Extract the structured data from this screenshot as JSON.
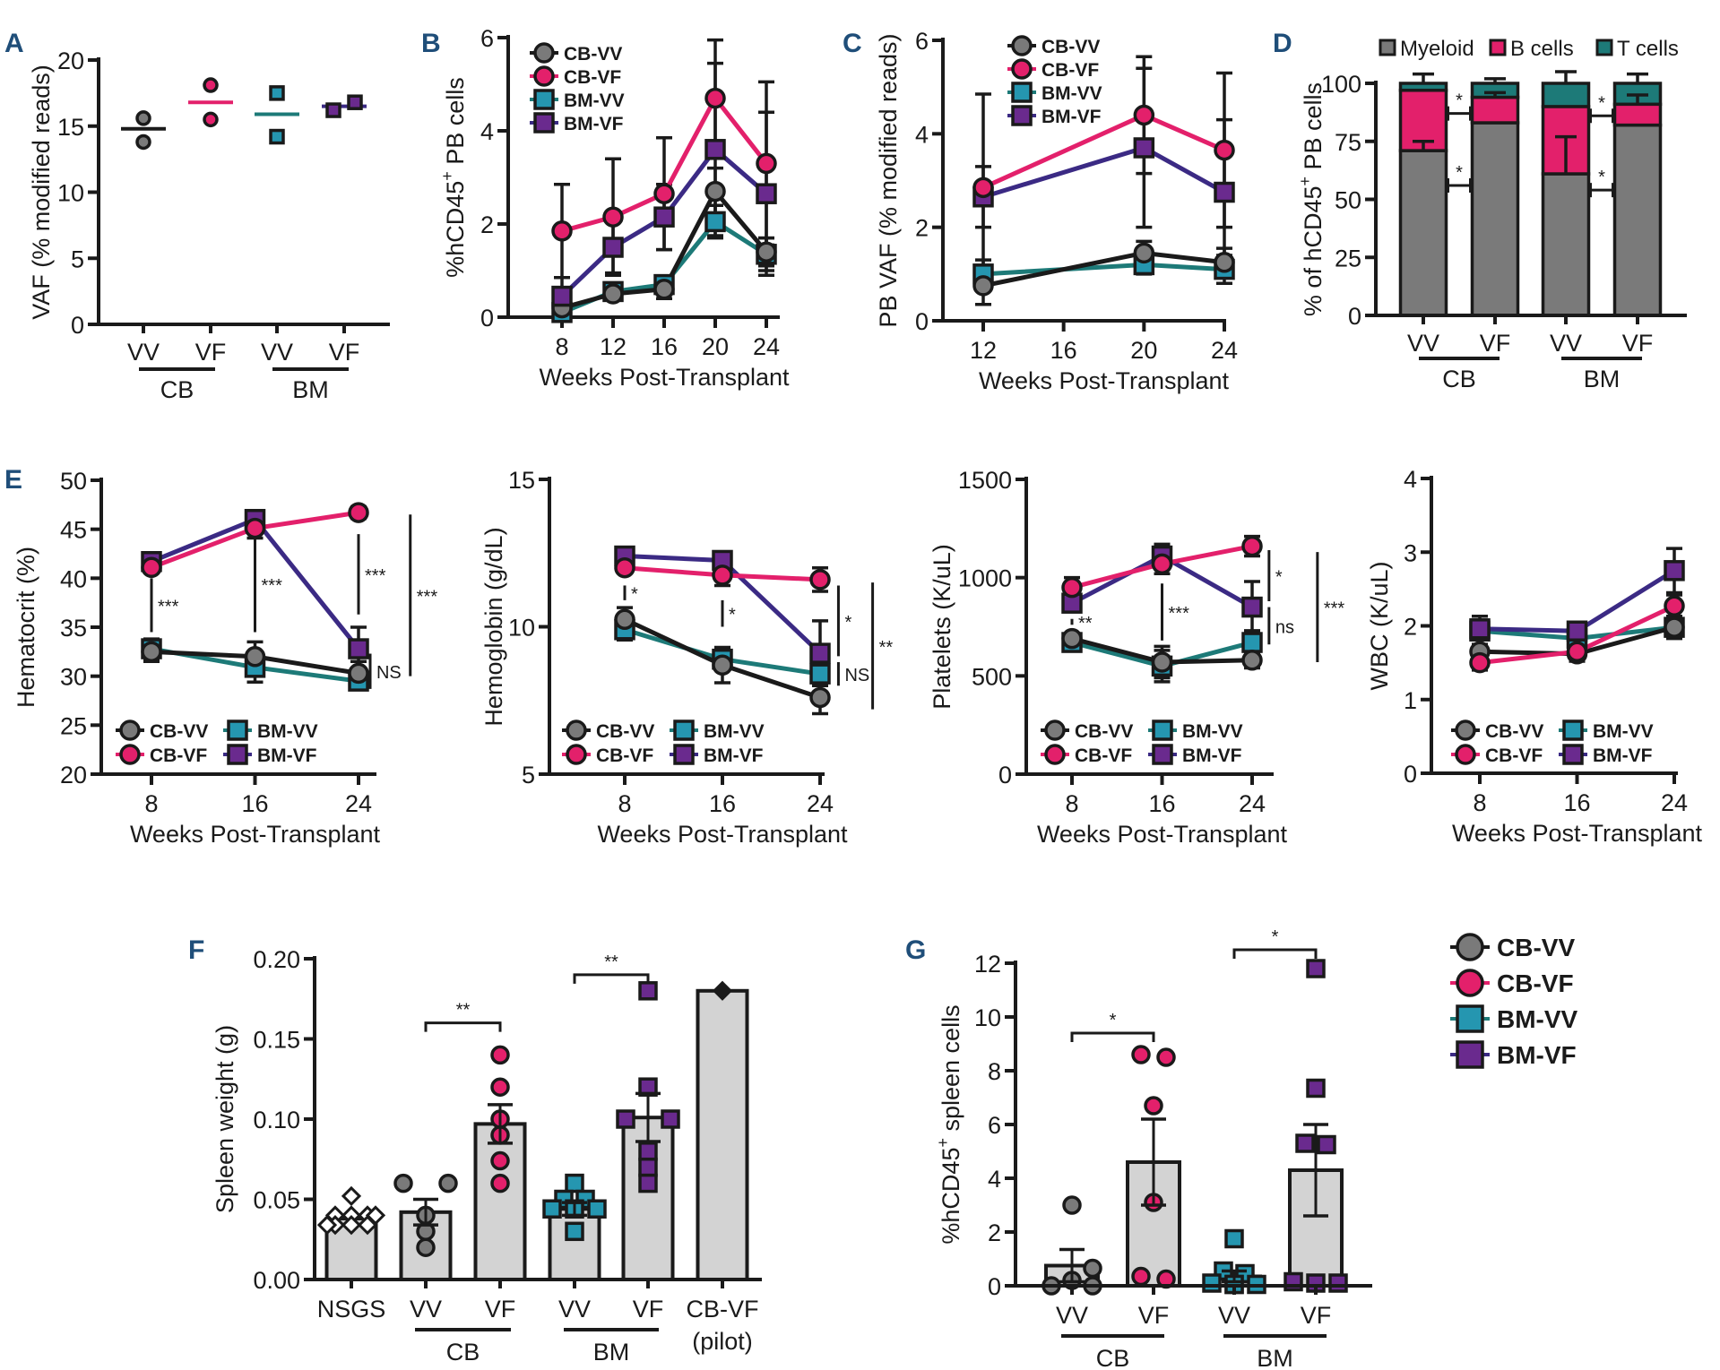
{
  "figure": {
    "series_styles": {
      "CB-VV": {
        "color": "#7a7a7a",
        "line": "#1a1a1a",
        "marker": "circle"
      },
      "CB-VF": {
        "color": "#e3206b",
        "line": "#e3206b",
        "marker": "circle"
      },
      "BM-VV": {
        "color": "#2596b0",
        "line": "#1d7a78",
        "marker": "square"
      },
      "BM-VF": {
        "color": "#6a2a8e",
        "line": "#3b2a84",
        "marker": "square"
      }
    },
    "shared_legend": {
      "entries": [
        "CB-VV",
        "CB-VF",
        "BM-VV",
        "BM-VF"
      ]
    }
  },
  "chart_data": [
    {
      "id": "A",
      "letter": "A",
      "type": "scatter",
      "title": "",
      "ylabel": "VAF (% modified reads)",
      "xlabel": "",
      "ylim": [
        0,
        20
      ],
      "yticks": [
        0,
        5,
        10,
        15,
        20
      ],
      "categories": [
        "VV",
        "VF",
        "VV",
        "VF"
      ],
      "groups": [
        {
          "label": "CB",
          "span": [
            0,
            1
          ]
        },
        {
          "label": "BM",
          "span": [
            2,
            3
          ]
        }
      ],
      "series": [
        {
          "name": "CB-VV",
          "points": [
            15.6,
            13.8
          ],
          "mean": 14.8
        },
        {
          "name": "CB-VF",
          "points": [
            18.1,
            15.5
          ],
          "mean": 16.8
        },
        {
          "name": "BM-VV",
          "points": [
            17.5,
            14.2
          ],
          "mean": 15.9
        },
        {
          "name": "BM-VF",
          "points": [
            16.2,
            16.8
          ],
          "mean": 16.5
        }
      ]
    },
    {
      "id": "B",
      "letter": "B",
      "type": "line",
      "ylabel": "%hCD45+ PB cells",
      "ylabel_parts": [
        "%hCD45",
        "+",
        " PB cells"
      ],
      "xlabel": "Weeks Post-Transplant",
      "x": [
        8,
        12,
        16,
        20,
        24
      ],
      "xlim": [
        8,
        24
      ],
      "ylim": [
        0,
        6
      ],
      "yticks": [
        0,
        2,
        4,
        6
      ],
      "xticks": [
        8,
        12,
        16,
        20,
        24
      ],
      "legend": "top-left",
      "series": [
        {
          "name": "CB-VV",
          "values": [
            0.2,
            0.5,
            0.6,
            2.7,
            1.4
          ],
          "err": [
            0.1,
            0.1,
            0.2,
            0.5,
            0.3
          ]
        },
        {
          "name": "CB-VF",
          "values": [
            1.85,
            2.15,
            2.65,
            4.7,
            3.3
          ],
          "err": [
            1.0,
            1.25,
            1.2,
            1.25,
            1.75
          ]
        },
        {
          "name": "BM-VV",
          "values": [
            0.1,
            0.55,
            0.7,
            2.05,
            1.35
          ],
          "err": [
            0.1,
            0.1,
            0.15,
            0.35,
            0.35
          ]
        },
        {
          "name": "BM-VF",
          "values": [
            0.45,
            1.5,
            2.15,
            3.6,
            2.65
          ],
          "err": [
            0.4,
            0.55,
            0.7,
            1.85,
            1.75
          ]
        }
      ]
    },
    {
      "id": "C",
      "letter": "C",
      "type": "line",
      "ylabel": "PB VAF (% modified reads)",
      "xlabel": "Weeks Post-Transplant",
      "x": [
        12,
        20,
        24
      ],
      "xlim": [
        12,
        24
      ],
      "ylim": [
        0,
        6
      ],
      "yticks": [
        0,
        2,
        4,
        6
      ],
      "xticks": [
        12,
        16,
        20,
        24
      ],
      "legend": "top",
      "series": [
        {
          "name": "CB-VV",
          "values": [
            0.75,
            1.45,
            1.25
          ],
          "err": [
            0.4,
            0.25,
            0.3
          ]
        },
        {
          "name": "CB-VF",
          "values": [
            2.85,
            4.4,
            3.65
          ],
          "err": [
            2.0,
            1.25,
            1.65
          ]
        },
        {
          "name": "BM-VV",
          "values": [
            1.0,
            1.2,
            1.1
          ],
          "err": [
            0.3,
            0.2,
            0.3
          ]
        },
        {
          "name": "BM-VF",
          "values": [
            2.65,
            3.7,
            2.75
          ],
          "err": [
            0.65,
            1.7,
            1.55
          ]
        }
      ]
    },
    {
      "id": "D",
      "letter": "D",
      "type": "bar",
      "stacked": true,
      "ylabel": "% of hCD45+ PB cells",
      "ylabel_parts": [
        "% of hCD45",
        "+",
        " PB cells"
      ],
      "ylim": [
        0,
        100
      ],
      "yticks": [
        0,
        25,
        50,
        75,
        100
      ],
      "categories": [
        "VV",
        "VF",
        "VV",
        "VF"
      ],
      "groups": [
        {
          "label": "CB",
          "span": [
            0,
            1
          ]
        },
        {
          "label": "BM",
          "span": [
            2,
            3
          ]
        }
      ],
      "legend": "top",
      "series": [
        {
          "name": "Myeloid",
          "color": "#7a7a7a",
          "values": [
            71,
            83,
            61,
            82
          ],
          "err": [
            4,
            0,
            16,
            0
          ]
        },
        {
          "name": "B cells",
          "color": "#e3206b",
          "values": [
            26,
            11,
            29,
            9
          ],
          "err": [
            0,
            2,
            0,
            4
          ]
        },
        {
          "name": "T cells",
          "color": "#1d7a78",
          "values": [
            3,
            6,
            10,
            9
          ],
          "err": [
            4,
            2,
            5,
            4
          ]
        }
      ],
      "annotations": [
        {
          "text": "*",
          "between": [
            0,
            1
          ],
          "at": 87
        },
        {
          "text": "*",
          "between": [
            0,
            1
          ],
          "at": 56
        },
        {
          "text": "*",
          "between": [
            2,
            3
          ],
          "at": 86
        },
        {
          "text": "*",
          "between": [
            2,
            3
          ],
          "at": 54
        }
      ]
    },
    {
      "id": "E1",
      "letter": "E",
      "type": "line",
      "ylabel": "Hematocrit (%)",
      "xlabel": "Weeks Post-Transplant",
      "x": [
        8,
        16,
        24
      ],
      "xlim": [
        8,
        24
      ],
      "ylim": [
        20,
        50
      ],
      "yticks": [
        20,
        25,
        30,
        35,
        40,
        45,
        50
      ],
      "xticks": [
        8,
        16,
        24
      ],
      "legend": "bottom-left",
      "series": [
        {
          "name": "CB-VV",
          "values": [
            32.5,
            32.0,
            30.3
          ],
          "err": [
            1.0,
            1.5,
            1.2
          ]
        },
        {
          "name": "CB-VF",
          "values": [
            41.1,
            45.1,
            46.7
          ],
          "err": [
            0.5,
            1.0,
            0.6
          ]
        },
        {
          "name": "BM-VV",
          "values": [
            32.8,
            30.9,
            29.5
          ],
          "err": [
            1.0,
            1.5,
            0.8
          ]
        },
        {
          "name": "BM-VF",
          "values": [
            41.7,
            46.0,
            32.8
          ],
          "err": [
            0.5,
            0.5,
            2.2
          ]
        }
      ],
      "annotations": [
        {
          "text": "***",
          "x": 8,
          "range": [
            34.5,
            40
          ]
        },
        {
          "text": "***",
          "x": 16,
          "range": [
            34.5,
            44.3
          ]
        },
        {
          "text": "***",
          "x": 24,
          "range": [
            36.3,
            44.5
          ]
        },
        {
          "text": "NS",
          "x": 24.9,
          "range": [
            28.7,
            32.3
          ]
        },
        {
          "text": "***",
          "x": 28,
          "range": [
            30,
            46.5
          ]
        }
      ]
    },
    {
      "id": "E2",
      "letter": "",
      "type": "line",
      "ylabel": "Hemoglobin (g/dL)",
      "xlabel": "Weeks Post-Transplant",
      "x": [
        8,
        16,
        24
      ],
      "xlim": [
        8,
        24
      ],
      "ylim": [
        5,
        15
      ],
      "yticks": [
        5,
        10,
        15
      ],
      "xticks": [
        8,
        16,
        24
      ],
      "legend": "bottom-left",
      "series": [
        {
          "name": "CB-VV",
          "values": [
            10.25,
            8.7,
            7.6
          ],
          "err": [
            0.4,
            0.6,
            0.55
          ]
        },
        {
          "name": "CB-VF",
          "values": [
            12.0,
            11.75,
            11.6
          ],
          "err": [
            0.1,
            0.35,
            0.4
          ]
        },
        {
          "name": "BM-VV",
          "values": [
            9.9,
            8.9,
            8.4
          ],
          "err": [
            0.35,
            0.3,
            0.3
          ]
        },
        {
          "name": "BM-VF",
          "values": [
            12.4,
            12.25,
            9.1
          ],
          "err": [
            0.15,
            0.25,
            1.1
          ]
        }
      ],
      "annotations": [
        {
          "text": "*",
          "x": 8,
          "range": [
            10.9,
            11.4
          ]
        },
        {
          "text": "*",
          "x": 16,
          "range": [
            10,
            10.9
          ]
        },
        {
          "text": "*",
          "x": 25.5,
          "range": [
            9.0,
            11.4
          ]
        },
        {
          "text": "NS",
          "x": 25.5,
          "range": [
            8.0,
            8.8
          ]
        },
        {
          "text": "**",
          "x": 28.3,
          "range": [
            7.2,
            11.5
          ]
        }
      ]
    },
    {
      "id": "E3",
      "letter": "",
      "type": "line",
      "ylabel": "Platelets (K/uL)",
      "xlabel": "Weeks Post-Transplant",
      "x": [
        8,
        16,
        24
      ],
      "xlim": [
        8,
        24
      ],
      "ylim": [
        0,
        1500
      ],
      "yticks": [
        0,
        500,
        1000,
        1500
      ],
      "xticks": [
        8,
        16,
        24
      ],
      "legend": "bottom-left",
      "series": [
        {
          "name": "CB-VV",
          "values": [
            690,
            570,
            580
          ],
          "err": [
            15,
            80,
            40
          ]
        },
        {
          "name": "CB-VF",
          "values": [
            950,
            1070,
            1160
          ],
          "err": [
            50,
            50,
            50
          ]
        },
        {
          "name": "BM-VV",
          "values": [
            670,
            550,
            670
          ],
          "err": [
            20,
            80,
            60
          ]
        },
        {
          "name": "BM-VF",
          "values": [
            870,
            1110,
            850
          ],
          "err": [
            40,
            60,
            130
          ]
        }
      ],
      "annotations": [
        {
          "text": "**",
          "x": 8,
          "range": [
            760,
            790
          ]
        },
        {
          "text": "***",
          "x": 16,
          "range": [
            680,
            970
          ]
        },
        {
          "text": "*",
          "x": 25.5,
          "range": [
            880,
            1140
          ]
        },
        {
          "text": "ns",
          "x": 25.5,
          "range": [
            660,
            850
          ]
        },
        {
          "text": "***",
          "x": 29.8,
          "range": [
            570,
            1130
          ]
        }
      ]
    },
    {
      "id": "E4",
      "letter": "",
      "type": "line",
      "ylabel": "WBC (K/uL)",
      "xlabel": "Weeks Post-Transplant",
      "x": [
        8,
        16,
        24
      ],
      "xlim": [
        8,
        24
      ],
      "ylim": [
        0,
        4
      ],
      "yticks": [
        0,
        1,
        2,
        3,
        4
      ],
      "xticks": [
        8,
        16,
        24
      ],
      "legend": "bottom-left",
      "series": [
        {
          "name": "CB-VV",
          "values": [
            1.65,
            1.62,
            1.98
          ],
          "err": [
            0.1,
            0.1,
            0.15
          ]
        },
        {
          "name": "CB-VF",
          "values": [
            1.5,
            1.65,
            2.27
          ],
          "err": [
            0.1,
            0.1,
            0.15
          ]
        },
        {
          "name": "BM-VV",
          "values": [
            1.93,
            1.83,
            1.98
          ],
          "err": [
            0.2,
            0.2,
            0.15
          ]
        },
        {
          "name": "BM-VF",
          "values": [
            1.96,
            1.93,
            2.75
          ],
          "err": [
            0.1,
            0.1,
            0.3
          ]
        }
      ]
    },
    {
      "id": "F",
      "letter": "F",
      "type": "bar",
      "ylabel": "Spleen weight (g)",
      "ylim": [
        0,
        0.2
      ],
      "yticks": [
        0.0,
        0.05,
        0.1,
        0.15,
        0.2
      ],
      "ytick_labels": [
        "0.00",
        "0.05",
        "0.10",
        "0.15",
        "0.20"
      ],
      "categories": [
        "NSGS",
        "VV",
        "VF",
        "VV",
        "VF",
        "CB-VF"
      ],
      "category_sublabels": [
        "",
        "",
        "",
        "",
        "",
        "(pilot)"
      ],
      "groups": [
        {
          "label": "CB",
          "span": [
            1,
            2
          ]
        },
        {
          "label": "BM",
          "span": [
            3,
            4
          ]
        }
      ],
      "bars": [
        {
          "name": "NSGS",
          "value": 0.038,
          "err": 0,
          "marker": "diamond-open",
          "points": [
            0.052,
            0.04,
            0.04,
            0.04,
            0.04,
            0.034,
            0.034,
            0.034,
            0.034
          ]
        },
        {
          "name": "CB-VV",
          "value": 0.042,
          "err": 0.008,
          "marker": "circle",
          "points": [
            0.06,
            0.06,
            0.04,
            0.03,
            0.02
          ]
        },
        {
          "name": "CB-VF",
          "value": 0.097,
          "err": 0.012,
          "marker": "circle",
          "points": [
            0.14,
            0.12,
            0.1,
            0.09,
            0.074,
            0.06
          ]
        },
        {
          "name": "BM-VV",
          "value": 0.044,
          "err": 0.004,
          "marker": "square",
          "points": [
            0.06,
            0.05,
            0.05,
            0.044,
            0.044,
            0.044,
            0.03
          ]
        },
        {
          "name": "BM-VF",
          "value": 0.101,
          "err": 0.015,
          "marker": "square",
          "points": [
            0.18,
            0.12,
            0.1,
            0.1,
            0.08,
            0.07,
            0.06
          ]
        },
        {
          "name": "CB-VF (pilot)",
          "value": 0.18,
          "err": 0,
          "marker": "diamond",
          "points": [
            0.18
          ]
        }
      ],
      "annotations": [
        {
          "text": "**",
          "between": [
            1,
            2
          ],
          "at": 0.16
        },
        {
          "text": "**",
          "between": [
            3,
            4
          ],
          "at": 0.19
        }
      ]
    },
    {
      "id": "G",
      "letter": "G",
      "type": "bar",
      "ylabel": "%hCD45+ spleen cells",
      "ylabel_parts": [
        "%hCD45",
        "+",
        " spleen cells"
      ],
      "ylim": [
        0,
        12
      ],
      "yticks": [
        0,
        2,
        4,
        6,
        8,
        10,
        12
      ],
      "categories": [
        "VV",
        "VF",
        "VV",
        "VF"
      ],
      "groups": [
        {
          "label": "CB",
          "span": [
            0,
            1
          ]
        },
        {
          "label": "BM",
          "span": [
            2,
            3
          ]
        }
      ],
      "bars": [
        {
          "name": "CB-VV",
          "value": 0.75,
          "err": 0.6,
          "marker": "circle",
          "points": [
            3.0,
            0.65,
            0.2,
            0.0,
            0.0
          ]
        },
        {
          "name": "CB-VF",
          "value": 4.6,
          "err": 1.6,
          "marker": "circle",
          "points": [
            8.6,
            8.5,
            6.7,
            3.1,
            0.35,
            0.25
          ]
        },
        {
          "name": "BM-VV",
          "value": 0.35,
          "err": 0.2,
          "marker": "square",
          "points": [
            1.75,
            0.55,
            0.45,
            0.1,
            0.05,
            0.05,
            0.05
          ]
        },
        {
          "name": "BM-VF",
          "value": 4.3,
          "err": 1.7,
          "marker": "square",
          "points": [
            11.8,
            7.35,
            5.3,
            5.25,
            0.15,
            0.1,
            0.1
          ]
        }
      ],
      "annotations": [
        {
          "text": "*",
          "between": [
            0,
            1
          ],
          "at": 9.4
        },
        {
          "text": "*",
          "between": [
            2,
            3
          ],
          "at": 12.5
        }
      ]
    }
  ]
}
